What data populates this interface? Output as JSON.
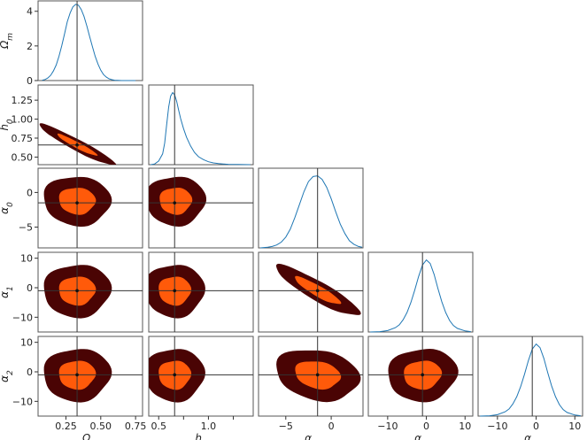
{
  "chart_data": {
    "type": "corner",
    "parameters": [
      {
        "id": "Om",
        "label": "Ω",
        "sub": "m",
        "range": [
          0.05,
          0.8
        ],
        "ticks": [
          0.25,
          0.5,
          0.75
        ],
        "tick_labels": [
          "0.25",
          "0.50",
          "0.75"
        ],
        "truth": 0.33
      },
      {
        "id": "h0",
        "label": "h",
        "sub": "0",
        "range": [
          0.4,
          1.45
        ],
        "ticks": [
          0.5,
          0.75,
          1.0,
          1.25
        ],
        "tick_labels": [
          "0.50",
          "0.75",
          "1.00",
          "1.25"
        ],
        "x_tick_labels": [
          "0.5",
          "",
          "1.0",
          ""
        ],
        "truth": 0.66
      },
      {
        "id": "a0",
        "label": "α",
        "sub": "0",
        "range": [
          -8,
          3.5
        ],
        "ticks": [
          -5,
          0
        ],
        "tick_labels": [
          "−5",
          "0"
        ],
        "truth": -1.5
      },
      {
        "id": "a1",
        "label": "α",
        "sub": "1",
        "range": [
          -15,
          12
        ],
        "ticks": [
          -10,
          0,
          10
        ],
        "tick_labels": [
          "−10",
          "0",
          "10"
        ],
        "truth": -1
      },
      {
        "id": "a2",
        "label": "α",
        "sub": "2",
        "range": [
          -15,
          12
        ],
        "ticks": [
          -10,
          0,
          10
        ],
        "tick_labels": [
          "−10",
          "0",
          "10"
        ],
        "truth": -1
      }
    ],
    "diagonal": [
      {
        "param": "Om",
        "y_range": [
          0,
          4.6
        ],
        "y_ticks": [
          0,
          2,
          4
        ],
        "y_tick_labels": [
          "0",
          "2",
          "4"
        ],
        "peak": 4.4,
        "x": [
          0.08,
          0.1,
          0.12,
          0.14,
          0.16,
          0.18,
          0.2,
          0.22,
          0.24,
          0.26,
          0.28,
          0.3,
          0.32,
          0.34,
          0.36,
          0.38,
          0.4,
          0.42,
          0.44,
          0.46,
          0.48,
          0.5,
          0.52,
          0.54,
          0.56,
          0.58,
          0.6,
          0.62,
          0.65,
          0.7,
          0.75
        ],
        "y": [
          0.02,
          0.06,
          0.15,
          0.3,
          0.55,
          0.9,
          1.4,
          2.0,
          2.7,
          3.4,
          3.9,
          4.25,
          4.4,
          4.35,
          4.1,
          3.7,
          3.15,
          2.55,
          1.95,
          1.4,
          0.95,
          0.6,
          0.35,
          0.2,
          0.1,
          0.05,
          0.02,
          0.01,
          0.0,
          0.0,
          0.0
        ]
      },
      {
        "param": "h0",
        "x": [
          0.42,
          0.46,
          0.5,
          0.54,
          0.56,
          0.58,
          0.6,
          0.62,
          0.64,
          0.66,
          0.68,
          0.7,
          0.72,
          0.75,
          0.78,
          0.82,
          0.86,
          0.9,
          0.95,
          1.0,
          1.05,
          1.1,
          1.15,
          1.2,
          1.3,
          1.42
        ],
        "y": [
          0.0,
          0.01,
          0.05,
          0.15,
          0.3,
          0.55,
          0.8,
          0.95,
          1.0,
          0.97,
          0.88,
          0.76,
          0.64,
          0.5,
          0.38,
          0.26,
          0.17,
          0.11,
          0.07,
          0.04,
          0.025,
          0.015,
          0.01,
          0.005,
          0.002,
          0.0
        ]
      },
      {
        "param": "a0",
        "x": [
          -7.8,
          -7,
          -6.5,
          -6,
          -5.5,
          -5,
          -4.5,
          -4,
          -3.5,
          -3,
          -2.5,
          -2,
          -1.5,
          -1,
          -0.5,
          0,
          0.5,
          1,
          1.5,
          2,
          2.5,
          3,
          3.4
        ],
        "y": [
          0.0,
          0.01,
          0.02,
          0.04,
          0.08,
          0.15,
          0.26,
          0.42,
          0.6,
          0.78,
          0.92,
          0.99,
          1.0,
          0.95,
          0.84,
          0.68,
          0.5,
          0.33,
          0.2,
          0.1,
          0.05,
          0.02,
          0.01
        ]
      },
      {
        "param": "a1",
        "x": [
          -14.5,
          -12,
          -10,
          -8,
          -7,
          -6,
          -5,
          -4,
          -3,
          -2,
          -1,
          0,
          1,
          2,
          3,
          4,
          5,
          6,
          7,
          8,
          10,
          11.5
        ],
        "y": [
          0.0,
          0.005,
          0.02,
          0.06,
          0.1,
          0.17,
          0.27,
          0.41,
          0.58,
          0.77,
          0.93,
          1.0,
          0.95,
          0.8,
          0.6,
          0.42,
          0.27,
          0.16,
          0.09,
          0.05,
          0.015,
          0.005
        ]
      },
      {
        "param": "a2",
        "x": [
          -14.5,
          -12,
          -10,
          -8,
          -7,
          -6,
          -5,
          -4,
          -3,
          -2,
          -1,
          0,
          1,
          2,
          3,
          4,
          5,
          6,
          7,
          8,
          10,
          11.5
        ],
        "y": [
          0.0,
          0.005,
          0.02,
          0.06,
          0.1,
          0.17,
          0.27,
          0.41,
          0.58,
          0.77,
          0.93,
          1.0,
          0.95,
          0.8,
          0.6,
          0.42,
          0.27,
          0.16,
          0.09,
          0.05,
          0.015,
          0.005
        ]
      }
    ],
    "contours": {
      "outer_color": "#4a0404",
      "inner_color": "#ff5a0a",
      "line_color": "#1f77b4",
      "pairs": [
        {
          "x": "Om",
          "y": "h0",
          "cx": 0.33,
          "cy": 0.66,
          "sx": 0.13,
          "sy": 0.13,
          "rho": -0.95,
          "inner_k": 1.1,
          "outer_k": 2.1
        },
        {
          "x": "Om",
          "y": "a0",
          "cx": 0.33,
          "cy": -1.2,
          "sx": 0.105,
          "sy": 1.55,
          "rho": -0.05,
          "inner_k": 1.25,
          "outer_k": 2.3
        },
        {
          "x": "h0",
          "y": "a0",
          "cx": 0.67,
          "cy": -1.2,
          "sx": 0.13,
          "sy": 1.55,
          "rho": 0.0,
          "inner_k": 1.25,
          "outer_k": 2.3
        },
        {
          "x": "Om",
          "y": "a1",
          "cx": 0.33,
          "cy": -1.0,
          "sx": 0.105,
          "sy": 3.9,
          "rho": 0.02,
          "inner_k": 1.25,
          "outer_k": 2.3
        },
        {
          "x": "h0",
          "y": "a1",
          "cx": 0.66,
          "cy": -1.0,
          "sx": 0.13,
          "sy": 3.9,
          "rho": 0.0,
          "inner_k": 1.25,
          "outer_k": 2.3
        },
        {
          "x": "a0",
          "y": "a1",
          "cx": -1.5,
          "cy": -1.0,
          "sx": 2.1,
          "sy": 3.9,
          "rho": -0.9,
          "inner_k": 1.2,
          "outer_k": 2.2
        },
        {
          "x": "Om",
          "y": "a2",
          "cx": 0.33,
          "cy": -1.0,
          "sx": 0.105,
          "sy": 3.9,
          "rho": 0.02,
          "inner_k": 1.25,
          "outer_k": 2.3
        },
        {
          "x": "h0",
          "y": "a2",
          "cx": 0.66,
          "cy": -1.0,
          "sx": 0.13,
          "sy": 3.9,
          "rho": 0.0,
          "inner_k": 1.25,
          "outer_k": 2.3
        },
        {
          "x": "a0",
          "y": "a2",
          "cx": -1.5,
          "cy": -1.0,
          "sx": 2.0,
          "sy": 3.8,
          "rho": -0.2,
          "inner_k": 1.25,
          "outer_k": 2.3
        },
        {
          "x": "a1",
          "y": "a2",
          "cx": -1.0,
          "cy": -1.0,
          "sx": 3.9,
          "sy": 3.9,
          "rho": 0.05,
          "inner_k": 1.25,
          "outer_k": 2.3
        }
      ]
    },
    "grid": false,
    "legend": "none"
  }
}
